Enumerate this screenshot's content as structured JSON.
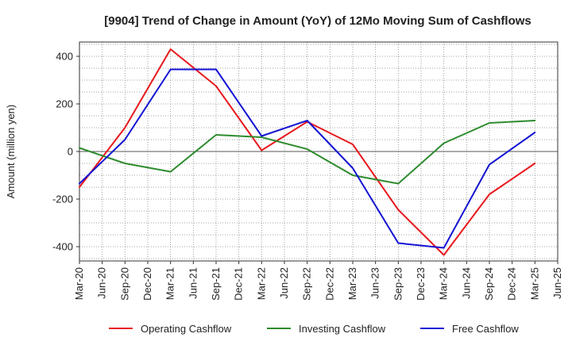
{
  "chart_data": {
    "type": "line",
    "title": "[9904]  Trend of Change in Amount (YoY) of 12Mo Moving Sum of Cashflows",
    "xlabel": "",
    "ylabel": "Amount (million yen)",
    "ylim": [
      -460,
      460
    ],
    "yticks": [
      400,
      200,
      0,
      -200,
      -400
    ],
    "ytick_labels": [
      "400",
      "200",
      "0",
      "-200",
      "-400"
    ],
    "categories": [
      "Mar-20",
      "Jun-20",
      "Sep-20",
      "Dec-20",
      "Mar-21",
      "Jun-21",
      "Sep-21",
      "Dec-21",
      "Mar-22",
      "Jun-22",
      "Sep-22",
      "Dec-22",
      "Mar-23",
      "Jun-23",
      "Sep-23",
      "Dec-23",
      "Mar-24",
      "Jun-24",
      "Sep-24",
      "Dec-24",
      "Mar-25",
      "Jun-25"
    ],
    "grid": true,
    "legend_position": "bottom",
    "series": [
      {
        "name": "Operating Cashflow",
        "color": "#e8191e",
        "values": [
          -150,
          null,
          100,
          null,
          430,
          null,
          275,
          null,
          5,
          null,
          125,
          null,
          30,
          null,
          -245,
          null,
          -435,
          null,
          -180,
          null,
          -50,
          null
        ]
      },
      {
        "name": "Investing Cashflow",
        "color": "#2e8b2e",
        "values": [
          15,
          null,
          -50,
          null,
          -85,
          null,
          70,
          null,
          60,
          null,
          10,
          null,
          -100,
          null,
          -135,
          null,
          35,
          null,
          120,
          null,
          130,
          null
        ]
      },
      {
        "name": "Free Cashflow",
        "color": "#1414d4",
        "values": [
          -135,
          null,
          50,
          null,
          345,
          null,
          345,
          null,
          65,
          null,
          130,
          null,
          -70,
          null,
          -385,
          null,
          -405,
          null,
          -55,
          null,
          80,
          null
        ]
      }
    ]
  }
}
